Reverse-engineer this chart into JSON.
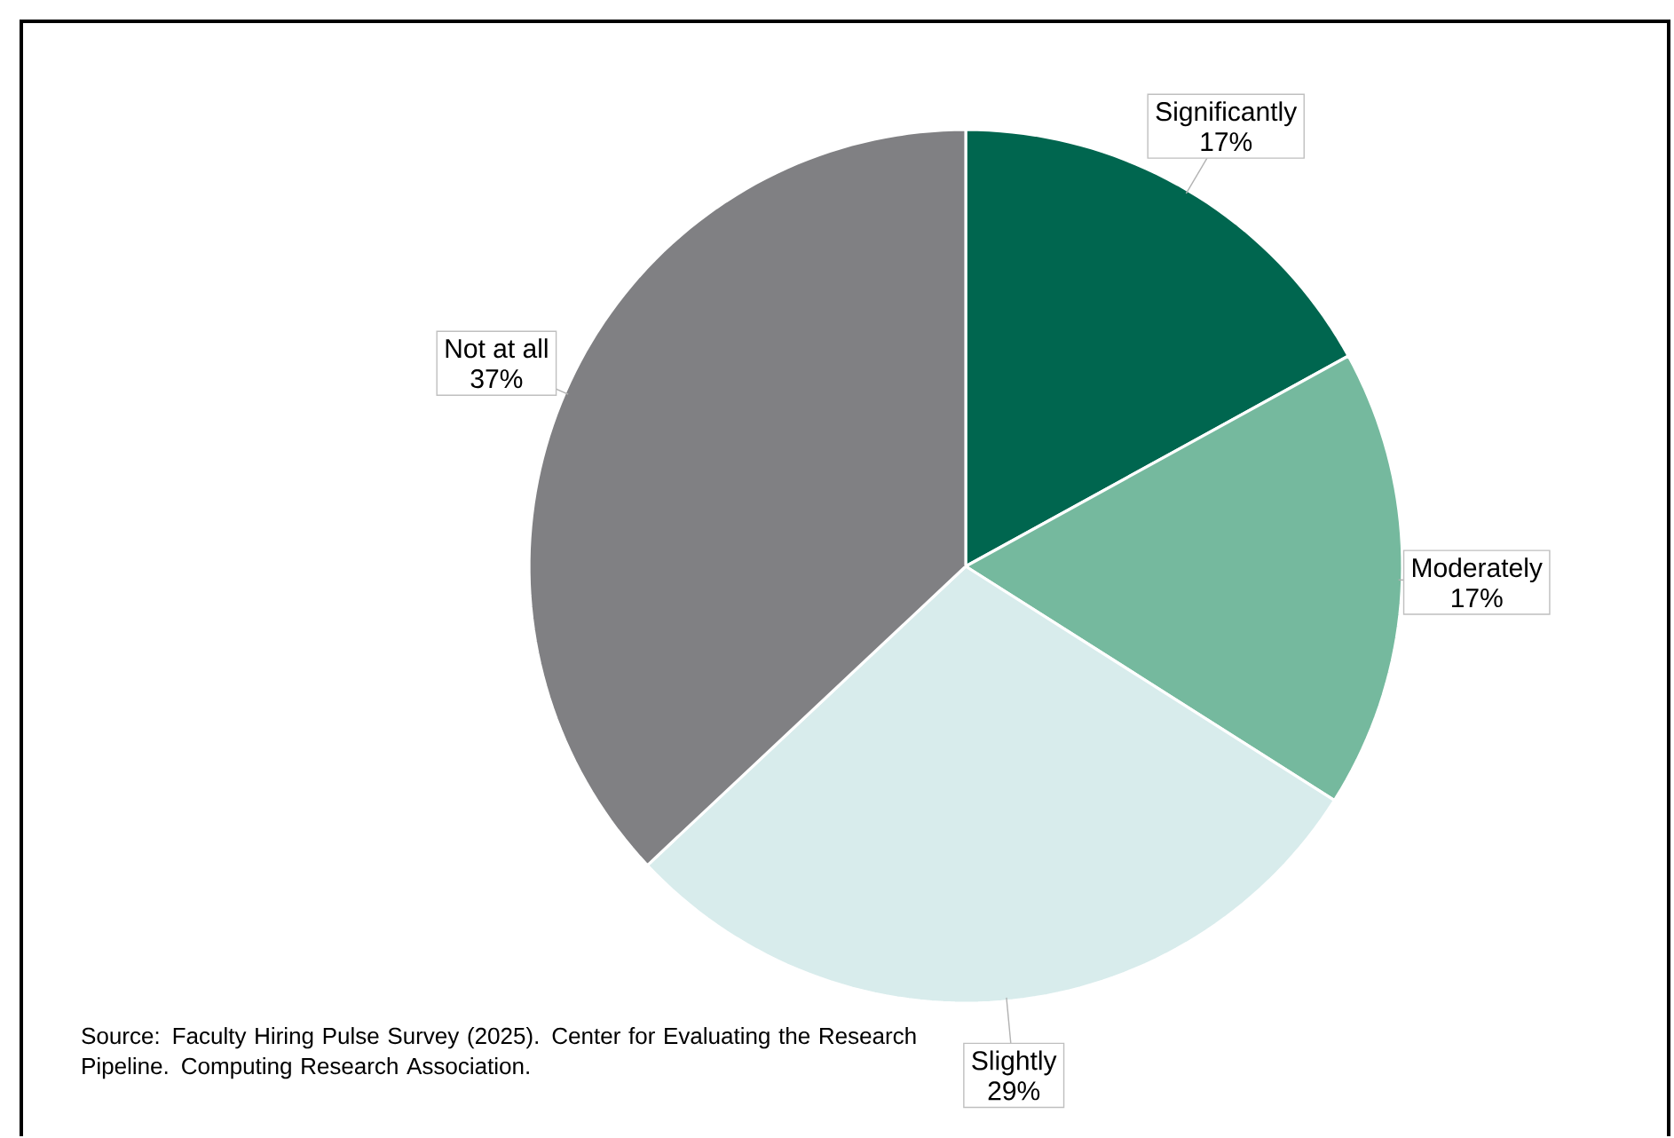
{
  "chart_data": {
    "type": "pie",
    "categories": [
      "Significantly",
      "Moderately",
      "Slightly",
      "Not at all"
    ],
    "values": [
      17,
      17,
      29,
      37
    ],
    "value_labels": [
      "17%",
      "17%",
      "29%",
      "37%"
    ],
    "colors": [
      "#00664f",
      "#75b99e",
      "#d8ecec",
      "#808083"
    ],
    "annotations": [
      "Source: Faculty Hiring Pulse Survey (2025). Center for Evaluating the Research Pipeline. Computing Research Association."
    ]
  }
}
